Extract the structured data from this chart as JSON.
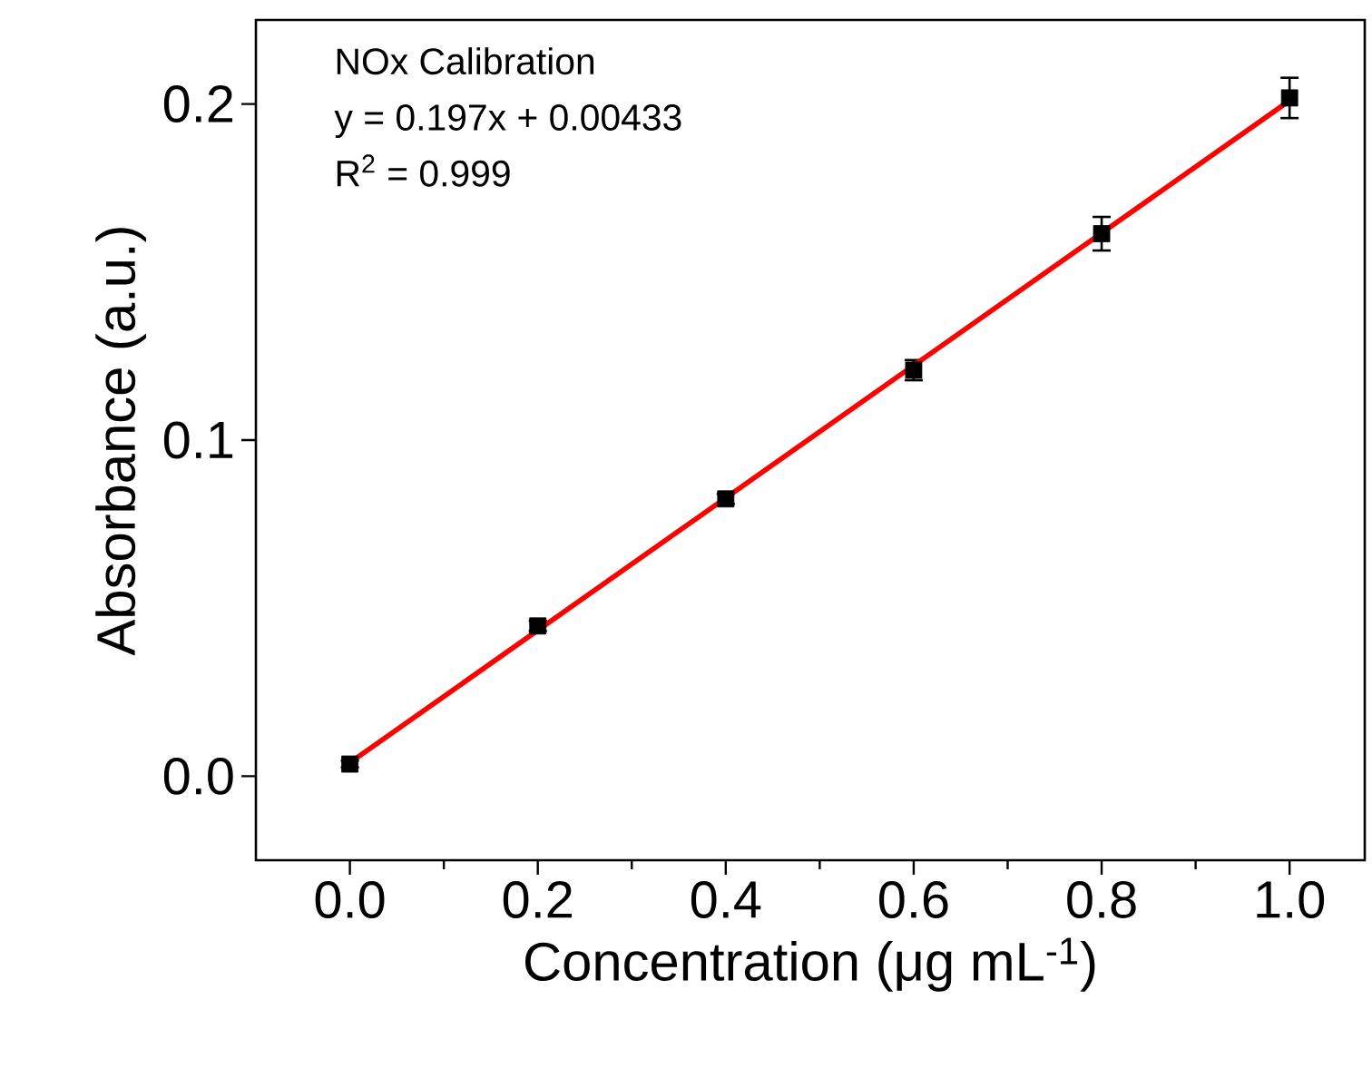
{
  "chart_data": {
    "type": "scatter",
    "xlabel": "Concentration (μg mL$^{-1}$)",
    "ylabel": "Absorbance (a.u.)",
    "annotations": [
      "NOx Calibration",
      "y = 0.197x + 0.00433",
      "R$^{2}$ = 0.999"
    ],
    "x": [
      0,
      0.2,
      0.4,
      0.6,
      0.8,
      1.0
    ],
    "series": [
      {
        "color": "#000000",
        "marker": "square",
        "values": [
          0.0036,
          0.0447,
          0.0825,
          0.1208,
          0.1614,
          0.2018
        ],
        "errors": [
          0.001,
          0.0015,
          0.0015,
          0.003,
          0.005,
          0.006
        ]
      },
      {
        "type": "line",
        "color": "#ff0000",
        "x": [
          0,
          1.0
        ],
        "values": [
          0.004,
          0.201
        ]
      }
    ],
    "xlim": [
      -0.1,
      1.08
    ],
    "ylim": [
      -0.025,
      0.225
    ],
    "xticks": [
      {
        "value": 0,
        "label": "0.0"
      },
      {
        "value": 0.2,
        "label": "0.2"
      },
      {
        "value": 0.4,
        "label": "0.4"
      },
      {
        "value": 0.6,
        "label": "0.6"
      },
      {
        "value": 0.8,
        "label": "0.8"
      },
      {
        "value": 1.0,
        "label": "1.0"
      }
    ],
    "yticks": [
      {
        "value": 0,
        "label": "0.0"
      },
      {
        "value": 0.1,
        "label": "0.1"
      },
      {
        "value": 0.2,
        "label": "0.2"
      }
    ]
  }
}
